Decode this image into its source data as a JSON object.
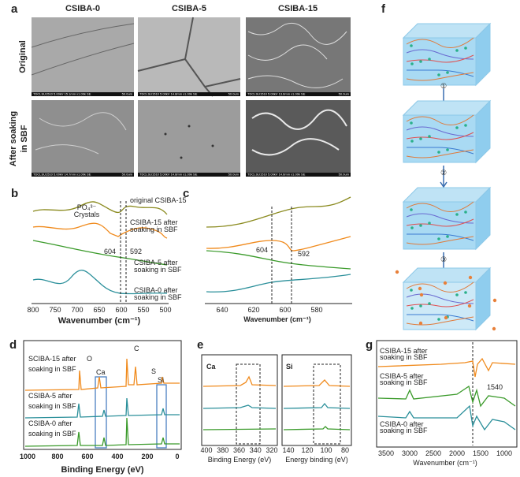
{
  "a": {
    "label": "a",
    "columns": [
      "CSIBA-0",
      "CSIBA-5",
      "CSIBA-15"
    ],
    "rows": [
      [
        "Original"
      ],
      [
        "After soaking",
        "in SBF"
      ]
    ],
    "images": [
      {
        "info": "TDCLSU1510 5.00kV 15.1mm x1.00k SE",
        "scale": "50.0um"
      },
      {
        "info": "TDCLSU1510 5.00kV 14.8mm x1.00k SE",
        "scale": "50.0um"
      },
      {
        "info": "TDCLSU1510 5.00kV 13.6mm x1.00k SE",
        "scale": "50.0um"
      },
      {
        "info": "TDCLSU1510 5.00kV 14.7mm x1.00k SE",
        "scale": "50.0um"
      },
      {
        "info": "TDCLSU1510 5.00kV 14.8mm x1.00k SE",
        "scale": "50.0um"
      },
      {
        "info": "TDCLSU1510 5.00kV 14.6mm x1.00k SE",
        "scale": "50.0um"
      }
    ]
  },
  "b": {
    "label": "b",
    "original": "original CSIBA-15",
    "crystals": [
      "PO₄³⁻",
      "Crystals"
    ],
    "csiba15": [
      "CSIBA-15 after",
      "soaking in SBF"
    ],
    "peak1": "604",
    "peak2": "592",
    "csiba5": [
      "CSIBA-5 after",
      "soaking in SBF"
    ],
    "csiba0": [
      "CSIBA-0 after",
      "soaking in SBF"
    ],
    "xticks": [
      800,
      750,
      700,
      650,
      600,
      550,
      500
    ],
    "xlabel": "Wavenumber (cm⁻¹)"
  },
  "c": {
    "label": "c",
    "peak1": "604",
    "peak2": "592",
    "xticks": [
      640,
      620,
      600,
      580
    ],
    "xlabel": "Wavenumber (cm⁻¹)"
  },
  "d": {
    "label": "d",
    "csiba15": [
      "SCIBA-15 after",
      "soaking in SBF"
    ],
    "csiba5": [
      "CSIBA-5 after",
      "soaking in SBF"
    ],
    "csiba0": [
      "CSIBA-0 after",
      "soaking in SBF"
    ],
    "peaks": [
      "O",
      "C",
      "Ca",
      "S",
      "Si"
    ],
    "xticks": [
      1000,
      800,
      600,
      400,
      200,
      0
    ],
    "xlabel": "Binding Energy (eV)"
  },
  "e": {
    "label": "e",
    "ca": "Ca",
    "si": "Si",
    "ca_ticks": [
      400,
      380,
      360,
      340,
      320
    ],
    "si_ticks": [
      140,
      120,
      100,
      80
    ],
    "ca_xlabel": "Binding Energy (eV)",
    "si_xlabel": "Energy binding (eV)"
  },
  "f": {
    "label": "f",
    "steps": [
      "①",
      "②",
      "③"
    ]
  },
  "g": {
    "label": "g",
    "csiba15": [
      "CSIBA-15 after",
      "soaking in SBF"
    ],
    "csiba5": [
      "CSIBA-5 after",
      "soaking in SBF"
    ],
    "csiba0": [
      "CSIBA-0 after",
      "soaking in SBF"
    ],
    "peak": "1540",
    "xticks": [
      3500,
      3000,
      2500,
      2000,
      1500,
      1000
    ],
    "xlabel": "Wavenumber (cm⁻¹)"
  }
}
